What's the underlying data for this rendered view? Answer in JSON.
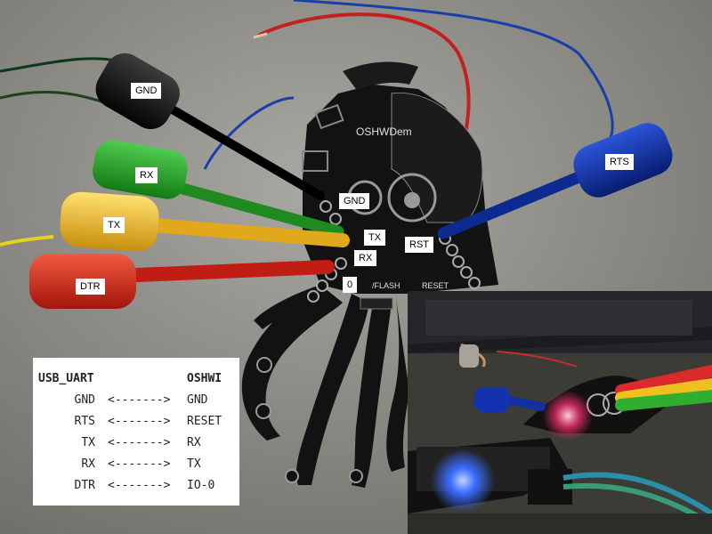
{
  "labels": {
    "gnd_probe": "GND",
    "rx_probe": "RX",
    "tx_probe": "TX",
    "dtr_probe": "DTR",
    "rts_probe": "RTS",
    "gnd_pin": "GND",
    "tx_pin": "TX",
    "rx_pin": "RX",
    "rst_pin": "RST",
    "io0_pin": "0"
  },
  "board": {
    "silkscreen_name": "OSHWDem",
    "flash_label": "/FLASH",
    "reset_label": "RESET"
  },
  "pin_map": {
    "left_header": "USB_UART",
    "right_header": "OSHWI",
    "arrow": "<------->",
    "rows": [
      {
        "from": "GND",
        "to": "GND"
      },
      {
        "from": "RTS",
        "to": "RESET"
      },
      {
        "from": "TX",
        "to": "RX"
      },
      {
        "from": "RX",
        "to": "TX"
      },
      {
        "from": "DTR",
        "to": "IO-0"
      }
    ]
  },
  "colors": {
    "gnd_clip": "#141414",
    "rx_clip": "#27a327",
    "tx_clip": "#e8b418",
    "dtr_clip": "#cc2418",
    "rts_clip": "#0e2c9a",
    "pcb": "#111111"
  }
}
